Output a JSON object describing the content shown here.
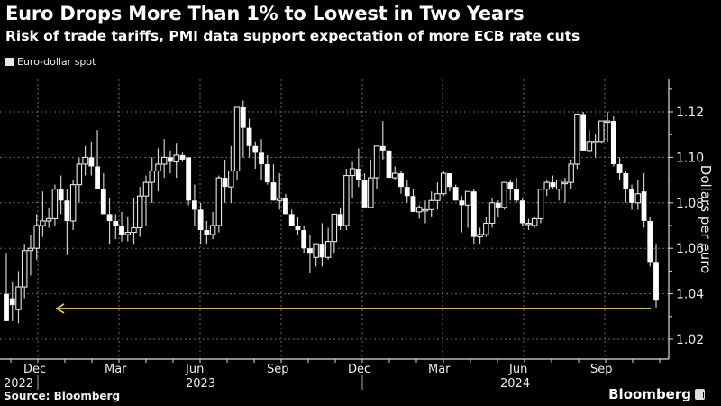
{
  "header": {
    "title": "Euro Drops More Than 1% to Lowest in Two Years",
    "subtitle": "Risk of trade tariffs, PMI data support expectation of more ECB rate cuts"
  },
  "legend": {
    "label": "Euro-dollar spot",
    "color": "#e6e6e6"
  },
  "footer": {
    "source": "Source: Bloomberg",
    "logo": "Bloomberg"
  },
  "colors": {
    "background": "#000000",
    "candle": "#ffffff",
    "grid": "#555555",
    "reference_line": "#e8d44d"
  },
  "chart_data": {
    "type": "candlestick",
    "title": "Euro Drops More Than 1% to Lowest in Two Years",
    "subtitle": "Risk of trade tariffs, PMI data support expectation of more ECB rate cuts",
    "xlabel": "",
    "ylabel": "Dollars per euro",
    "ylim": [
      1.01,
      1.13
    ],
    "yticks": [
      1.02,
      1.04,
      1.06,
      1.08,
      1.1,
      1.12
    ],
    "ytick_labels": [
      "1.02",
      "1.04",
      "1.06",
      "1.08",
      "1.10",
      "1.12"
    ],
    "xtick_labels": [
      "Dec",
      "Mar",
      "Jun",
      "Sep",
      "Dec",
      "Mar",
      "Jun",
      "Sep"
    ],
    "xtick_year_labels": [
      {
        "label": "2022",
        "under": "Dec"
      },
      {
        "label": "2023",
        "under": "Jun"
      },
      {
        "label": "2024",
        "under": "Jun"
      }
    ],
    "grid": true,
    "legend": [
      "Euro-dollar spot"
    ],
    "legend_position": "top-left",
    "frequency": "weekly",
    "annotations": [
      {
        "type": "horizontal-arrow",
        "value": 1.0335,
        "direction": "left",
        "color": "#e8d44d",
        "note": "lowest level in two years"
      }
    ],
    "series": [
      {
        "name": "Euro-dollar spot",
        "ohlc": [
          [
            1.04,
            1.058,
            1.03,
            1.028
          ],
          [
            1.038,
            1.045,
            1.028,
            1.035
          ],
          [
            1.033,
            1.05,
            1.027,
            1.043
          ],
          [
            1.043,
            1.062,
            1.038,
            1.059
          ],
          [
            1.059,
            1.066,
            1.048,
            1.06
          ],
          [
            1.06,
            1.075,
            1.055,
            1.07
          ],
          [
            1.07,
            1.085,
            1.065,
            1.072
          ],
          [
            1.072,
            1.078,
            1.069,
            1.073
          ],
          [
            1.073,
            1.088,
            1.07,
            1.086
          ],
          [
            1.086,
            1.092,
            1.075,
            1.081
          ],
          [
            1.081,
            1.086,
            1.057,
            1.072
          ],
          [
            1.072,
            1.09,
            1.068,
            1.088
          ],
          [
            1.088,
            1.1,
            1.08,
            1.097
          ],
          [
            1.097,
            1.105,
            1.092,
            1.1
          ],
          [
            1.1,
            1.107,
            1.092,
            1.096
          ],
          [
            1.096,
            1.112,
            1.088,
            1.086
          ],
          [
            1.086,
            1.093,
            1.078,
            1.075
          ],
          [
            1.075,
            1.082,
            1.062,
            1.072
          ],
          [
            1.072,
            1.075,
            1.064,
            1.07
          ],
          [
            1.07,
            1.076,
            1.063,
            1.066
          ],
          [
            1.066,
            1.074,
            1.063,
            1.067
          ],
          [
            1.067,
            1.082,
            1.062,
            1.069
          ],
          [
            1.069,
            1.087,
            1.065,
            1.083
          ],
          [
            1.083,
            1.092,
            1.07,
            1.089
          ],
          [
            1.089,
            1.1,
            1.08,
            1.094
          ],
          [
            1.094,
            1.104,
            1.085,
            1.097
          ],
          [
            1.097,
            1.108,
            1.091,
            1.1
          ],
          [
            1.1,
            1.103,
            1.093,
            1.098
          ],
          [
            1.098,
            1.106,
            1.091,
            1.101
          ],
          [
            1.101,
            1.102,
            1.098,
            1.099
          ],
          [
            1.1,
            1.099,
            1.079,
            1.081
          ],
          [
            1.081,
            1.088,
            1.07,
            1.077
          ],
          [
            1.077,
            1.08,
            1.062,
            1.068
          ],
          [
            1.068,
            1.072,
            1.062,
            1.066
          ],
          [
            1.066,
            1.076,
            1.064,
            1.07
          ],
          [
            1.07,
            1.092,
            1.067,
            1.091
          ],
          [
            1.091,
            1.099,
            1.08,
            1.087
          ],
          [
            1.087,
            1.105,
            1.08,
            1.094
          ],
          [
            1.094,
            1.115,
            1.09,
            1.122
          ],
          [
            1.122,
            1.125,
            1.1,
            1.113
          ],
          [
            1.113,
            1.117,
            1.1,
            1.105
          ],
          [
            1.105,
            1.107,
            1.095,
            1.102
          ],
          [
            1.102,
            1.108,
            1.09,
            1.097
          ],
          [
            1.097,
            1.101,
            1.088,
            1.089
          ],
          [
            1.089,
            1.097,
            1.082,
            1.081
          ],
          [
            1.081,
            1.093,
            1.077,
            1.082
          ],
          [
            1.082,
            1.084,
            1.075,
            1.075
          ],
          [
            1.075,
            1.077,
            1.07,
            1.07
          ],
          [
            1.07,
            1.074,
            1.066,
            1.068
          ],
          [
            1.068,
            1.07,
            1.058,
            1.06
          ],
          [
            1.06,
            1.066,
            1.049,
            1.058
          ],
          [
            1.056,
            1.06,
            1.052,
            1.062
          ],
          [
            1.062,
            1.071,
            1.052,
            1.056
          ],
          [
            1.056,
            1.069,
            1.055,
            1.063
          ],
          [
            1.063,
            1.075,
            1.058,
            1.075
          ],
          [
            1.075,
            1.078,
            1.068,
            1.07
          ],
          [
            1.07,
            1.095,
            1.068,
            1.092
          ],
          [
            1.092,
            1.098,
            1.082,
            1.095
          ],
          [
            1.095,
            1.104,
            1.087,
            1.09
          ],
          [
            1.09,
            1.093,
            1.08,
            1.078
          ],
          [
            1.078,
            1.099,
            1.079,
            1.091
          ],
          [
            1.091,
            1.104,
            1.086,
            1.105
          ],
          [
            1.105,
            1.116,
            1.099,
            1.103
          ],
          [
            1.103,
            1.102,
            1.093,
            1.091
          ],
          [
            1.091,
            1.096,
            1.09,
            1.093
          ],
          [
            1.093,
            1.094,
            1.084,
            1.087
          ],
          [
            1.087,
            1.09,
            1.08,
            1.083
          ],
          [
            1.083,
            1.086,
            1.076,
            1.076
          ],
          [
            1.076,
            1.079,
            1.073,
            1.078
          ],
          [
            1.077,
            1.081,
            1.071,
            1.077
          ],
          [
            1.077,
            1.085,
            1.074,
            1.081
          ],
          [
            1.081,
            1.089,
            1.077,
            1.084
          ],
          [
            1.084,
            1.094,
            1.083,
            1.093
          ],
          [
            1.093,
            1.092,
            1.085,
            1.087
          ],
          [
            1.087,
            1.088,
            1.082,
            1.081
          ],
          [
            1.081,
            1.083,
            1.067,
            1.079
          ],
          [
            1.079,
            1.085,
            1.069,
            1.085
          ],
          [
            1.085,
            1.086,
            1.062,
            1.065
          ],
          [
            1.065,
            1.069,
            1.062,
            1.066
          ],
          [
            1.066,
            1.074,
            1.065,
            1.071
          ],
          [
            1.071,
            1.082,
            1.069,
            1.08
          ],
          [
            1.08,
            1.081,
            1.074,
            1.078
          ],
          [
            1.078,
            1.089,
            1.077,
            1.089
          ],
          [
            1.089,
            1.09,
            1.081,
            1.086
          ],
          [
            1.086,
            1.091,
            1.08,
            1.081
          ],
          [
            1.081,
            1.082,
            1.07,
            1.071
          ],
          [
            1.071,
            1.073,
            1.068,
            1.071
          ],
          [
            1.07,
            1.074,
            1.069,
            1.073
          ],
          [
            1.073,
            1.08,
            1.071,
            1.086
          ],
          [
            1.086,
            1.09,
            1.083,
            1.089
          ],
          [
            1.089,
            1.092,
            1.086,
            1.087
          ],
          [
            1.086,
            1.09,
            1.081,
            1.09
          ],
          [
            1.089,
            1.091,
            1.08,
            1.089
          ],
          [
            1.089,
            1.099,
            1.086,
            1.097
          ],
          [
            1.097,
            1.112,
            1.095,
            1.119
          ],
          [
            1.119,
            1.12,
            1.103,
            1.103
          ],
          [
            1.103,
            1.112,
            1.102,
            1.107
          ],
          [
            1.107,
            1.11,
            1.1,
            1.107
          ],
          [
            1.107,
            1.115,
            1.106,
            1.116
          ],
          [
            1.116,
            1.12,
            1.107,
            1.116
          ],
          [
            1.116,
            1.118,
            1.096,
            1.097
          ],
          [
            1.097,
            1.1,
            1.09,
            1.093
          ],
          [
            1.093,
            1.094,
            1.08,
            1.086
          ],
          [
            1.086,
            1.088,
            1.077,
            1.08
          ],
          [
            1.08,
            1.09,
            1.077,
            1.084
          ],
          [
            1.085,
            1.093,
            1.069,
            1.072
          ],
          [
            1.072,
            1.074,
            1.052,
            1.054
          ],
          [
            1.054,
            1.062,
            1.034,
            1.037
          ]
        ]
      }
    ]
  }
}
